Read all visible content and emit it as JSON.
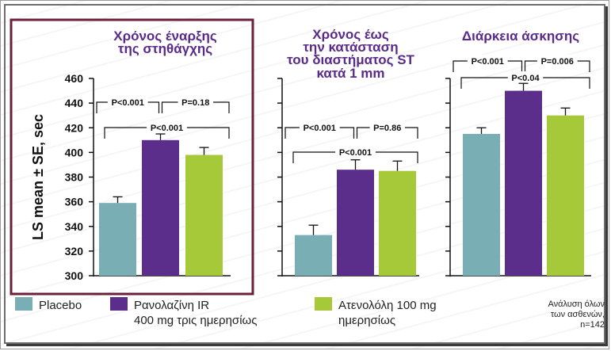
{
  "chart_data": {
    "type": "bar",
    "ylabel": "LS mean ± SE, sec",
    "ylim": [
      300,
      460
    ],
    "yticks": [
      300,
      320,
      340,
      360,
      380,
      400,
      420,
      440,
      460
    ],
    "series_names": [
      "Placebo",
      "Ρανολαζίνη IR 400 mg τρις ημερησίως",
      "Ατενολόλη 100 mg ημερησίως"
    ],
    "colors": [
      "#7aaeb5",
      "#5b2e8c",
      "#a6c93a"
    ],
    "panels": [
      {
        "title": [
          "Χρόνος έναρξης",
          "της στηθάγχης"
        ],
        "values": [
          359,
          410,
          398
        ],
        "errors": [
          5,
          5,
          6
        ],
        "comparisons": [
          {
            "from": 0,
            "to": 1,
            "label": "P<0.001",
            "level": 0
          },
          {
            "from": 1,
            "to": 2,
            "label": "P=0.18",
            "level": 0
          },
          {
            "from": 0,
            "to": 2,
            "label": "P<0.001",
            "level": 1
          }
        ]
      },
      {
        "title": [
          "Χρόνος έως",
          "την κατάσταση",
          "του διαστήματος ST",
          "κατά 1 mm"
        ],
        "values": [
          333,
          386,
          385
        ],
        "errors": [
          8,
          8,
          8
        ],
        "comparisons": [
          {
            "from": 0,
            "to": 1,
            "label": "P<0.001",
            "level": 0
          },
          {
            "from": 1,
            "to": 2,
            "label": "P=0.86",
            "level": 0
          },
          {
            "from": 0,
            "to": 2,
            "label": "P<0.001",
            "level": 1
          }
        ]
      },
      {
        "title": [
          "Διάρκεια άσκησης"
        ],
        "values": [
          415,
          450,
          430
        ],
        "errors": [
          5,
          6,
          6
        ],
        "comparisons": [
          {
            "from": 0,
            "to": 1,
            "label": "P<0.001",
            "level": 0
          },
          {
            "from": 1,
            "to": 2,
            "label": "P=0.006",
            "level": 0
          },
          {
            "from": 0,
            "to": 2,
            "label": "P<0.04",
            "level": 1
          }
        ]
      }
    ]
  },
  "legend": {
    "items": [
      {
        "line1": "Placebo",
        "line2": ""
      },
      {
        "line1": "Ρανολαζίνη IR",
        "line2": "400 mg τρις ημερησίως"
      },
      {
        "line1": "Ατενολόλη 100 mg",
        "line2": "ημερησίως"
      }
    ]
  },
  "note": {
    "lines": [
      "Ανάλυση όλων",
      "των ασθενών,",
      "n=142"
    ]
  }
}
